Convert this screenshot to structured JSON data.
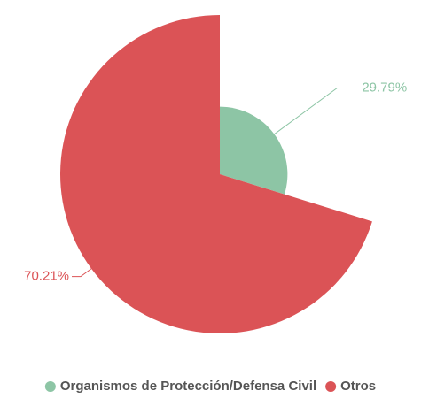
{
  "chart_data": {
    "type": "pie",
    "rose_type": "radius",
    "categories": [
      "Organismos de Protección/Defensa Civil",
      "Otros"
    ],
    "values": [
      29.79,
      70.21
    ],
    "value_labels": [
      "29.79%",
      "70.21%"
    ],
    "colors": [
      "#8dc5a5",
      "#db5356"
    ],
    "legend": "bottom"
  }
}
